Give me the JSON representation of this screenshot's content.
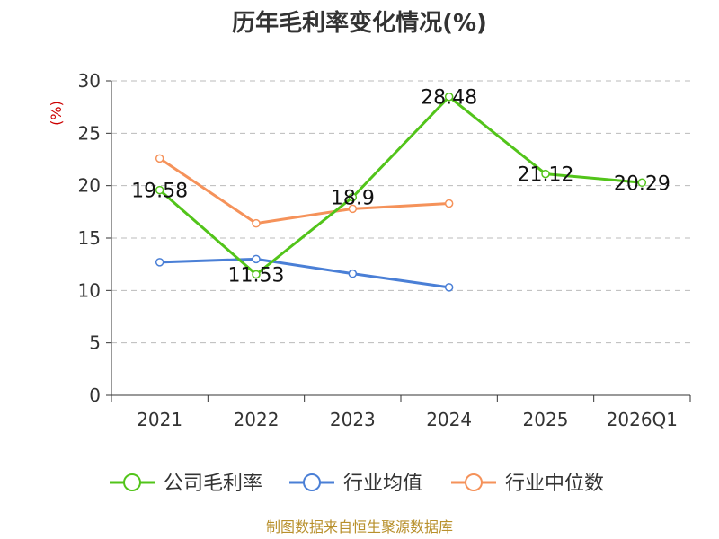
{
  "chart_data": {
    "type": "line",
    "title": "历年毛利率变化情况(%)",
    "ylabel": "(%)",
    "categories": [
      "2021",
      "2022",
      "2023",
      "2024",
      "2025",
      "2026Q1"
    ],
    "ylim": [
      0,
      30
    ],
    "yticks": [
      0,
      5,
      10,
      15,
      20,
      25,
      30
    ],
    "grid": true,
    "legend_position": "bottom",
    "series": [
      {
        "name": "公司毛利率",
        "color": "#52c41a",
        "values": [
          19.58,
          11.53,
          18.9,
          28.48,
          21.12,
          20.29
        ],
        "labels": [
          "19.58",
          "11.53",
          "18.9",
          "28.48",
          "21.12",
          "20.29"
        ]
      },
      {
        "name": "行业均值",
        "color": "#4a7fd6",
        "values": [
          12.7,
          13.0,
          11.6,
          10.3,
          null,
          null
        ]
      },
      {
        "name": "行业中位数",
        "color": "#f5925a",
        "values": [
          22.6,
          16.4,
          17.8,
          18.3,
          null,
          null
        ]
      }
    ]
  },
  "source": "制图数据来自恒生聚源数据库"
}
